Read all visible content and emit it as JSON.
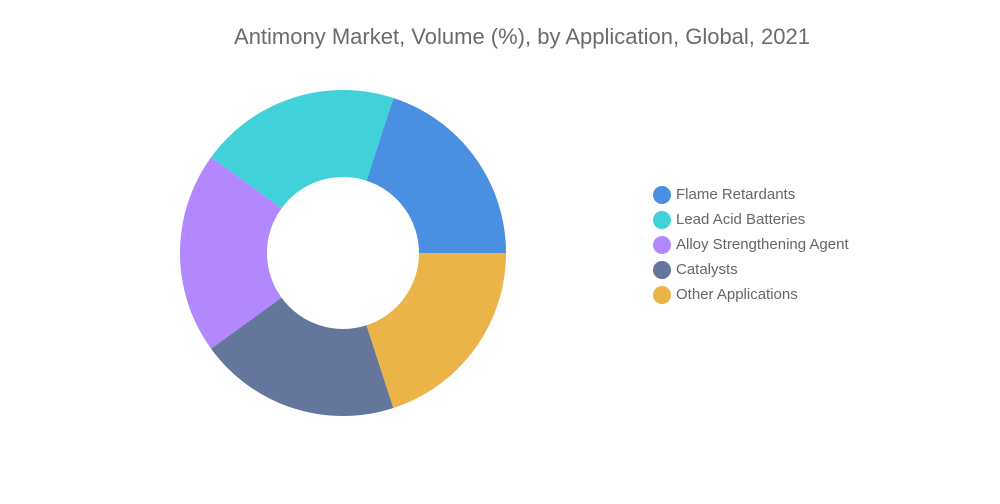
{
  "chart_data": {
    "type": "donut",
    "title": "Antimony Market, Volume (%), by Application, Global, 2021",
    "categories": [
      "Flame Retardants",
      "Lead Acid Batteries",
      "Alloy Strengthening Agent",
      "Catalysts",
      "Other Applications"
    ],
    "values": [
      20,
      20,
      20,
      20,
      20
    ],
    "colors": [
      "#4a90e2",
      "#41d1d9",
      "#b388ff",
      "#64769b",
      "#ebb449"
    ]
  }
}
